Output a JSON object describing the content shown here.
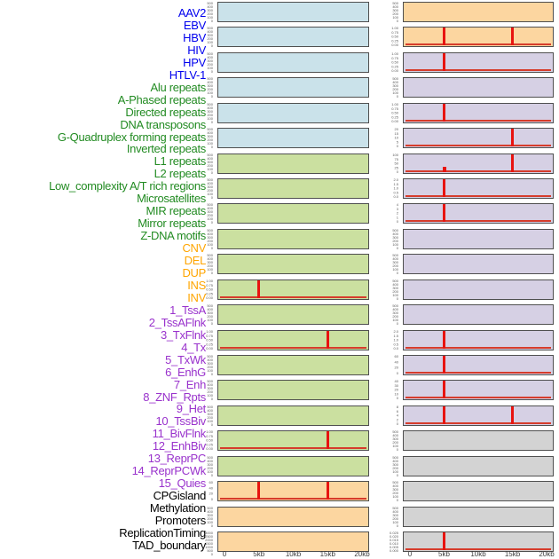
{
  "figure": {
    "layout": {
      "panel_columns": 2,
      "rows_per_column": 22,
      "total_tracks": 44
    },
    "x_axis": {
      "tick_labels": [
        "0",
        "5kb",
        "10kb",
        "15kb",
        "20kb"
      ],
      "tick_values_kb": [
        0,
        5,
        10,
        15,
        20
      ],
      "range_kb": [
        0,
        20
      ]
    }
  },
  "colors": {
    "background": "#ffffff",
    "panel_border": "#4f4f4f",
    "spike": "#e81410",
    "baseline": "#d63c2c",
    "y_tick_text": "#5a5a5a",
    "x_tick_text": "#3c3c3c",
    "panel_fill": {
      "virus": "#cae2ea",
      "repeat": "#cbe0a0",
      "sv": "#fcd6a0",
      "chromatin": "#d6d0e4",
      "other": "#d3d3d3"
    },
    "label_text": {
      "virus": "#0000ee",
      "repeat": "#228b22",
      "sv": "#ffa500",
      "chromatin": "#9932cc",
      "other": "#000000"
    }
  },
  "chart_data": {
    "type": "small-multiple strip panels (feature density tracks over a 0-20kb window)",
    "x_ticks": [
      "0",
      "5kb",
      "10kb",
      "15kb",
      "20kb"
    ],
    "x_range_kb": [
      0,
      20
    ],
    "spike_positions_kb": [
      5,
      15
    ],
    "tracks": [
      {
        "label": "AAV2",
        "category": "virus",
        "column": "left",
        "row": 1,
        "y_ticks": [
          "500",
          "400",
          "300",
          "200",
          "100",
          "0"
        ],
        "baseline": false,
        "spikes": []
      },
      {
        "label": "EBV",
        "category": "virus",
        "column": "left",
        "row": 2,
        "y_ticks": [
          "500",
          "400",
          "300",
          "200",
          "100",
          "0"
        ],
        "baseline": false,
        "spikes": []
      },
      {
        "label": "HBV",
        "category": "virus",
        "column": "left",
        "row": 3,
        "y_ticks": [
          "500",
          "400",
          "300",
          "200",
          "100",
          "0"
        ],
        "baseline": false,
        "spikes": []
      },
      {
        "label": "HIV",
        "category": "virus",
        "column": "left",
        "row": 4,
        "y_ticks": [
          "500",
          "400",
          "300",
          "200",
          "100",
          "0"
        ],
        "baseline": false,
        "spikes": []
      },
      {
        "label": "HPV",
        "category": "virus",
        "column": "left",
        "row": 5,
        "y_ticks": [
          "500",
          "400",
          "300",
          "200",
          "100",
          "0"
        ],
        "baseline": false,
        "spikes": []
      },
      {
        "label": "HTLV-1",
        "category": "virus",
        "column": "left",
        "row": 6,
        "y_ticks": [
          "500",
          "400",
          "300",
          "200",
          "100",
          "0"
        ],
        "baseline": false,
        "spikes": []
      },
      {
        "label": "Alu repeats",
        "category": "repeat",
        "column": "left",
        "row": 7,
        "y_ticks": [
          "500",
          "400",
          "300",
          "200",
          "100",
          "0"
        ],
        "baseline": false,
        "spikes": []
      },
      {
        "label": "A-Phased repeats",
        "category": "repeat",
        "column": "left",
        "row": 8,
        "y_ticks": [
          "500",
          "400",
          "300",
          "200",
          "100",
          "0"
        ],
        "baseline": false,
        "spikes": []
      },
      {
        "label": "Directed repeats",
        "category": "repeat",
        "column": "left",
        "row": 9,
        "y_ticks": [
          "500",
          "400",
          "300",
          "200",
          "100",
          "0"
        ],
        "baseline": false,
        "spikes": []
      },
      {
        "label": "DNA transposons",
        "category": "repeat",
        "column": "left",
        "row": 10,
        "y_ticks": [
          "500",
          "400",
          "300",
          "200",
          "100",
          "0"
        ],
        "baseline": false,
        "spikes": []
      },
      {
        "label": "G-Quadruplex forming repeats",
        "category": "repeat",
        "column": "left",
        "row": 11,
        "y_ticks": [
          "500",
          "400",
          "300",
          "200",
          "100",
          "0"
        ],
        "baseline": false,
        "spikes": []
      },
      {
        "label": "Inverted repeats",
        "category": "repeat",
        "column": "left",
        "row": 12,
        "y_ticks": [
          "1.00",
          "0.75",
          "0.50",
          "0.25",
          "0.00"
        ],
        "baseline": true,
        "spikes": [
          {
            "at_kb": 5,
            "h": 1.0,
            "w": 3
          }
        ]
      },
      {
        "label": "L1 repeats",
        "category": "repeat",
        "column": "left",
        "row": 13,
        "y_ticks": [
          "500",
          "400",
          "300",
          "200",
          "100",
          "0"
        ],
        "baseline": false,
        "spikes": []
      },
      {
        "label": "L2 repeats",
        "category": "repeat",
        "column": "left",
        "row": 14,
        "y_ticks": [
          "1.00",
          "0.75",
          "0.50",
          "0.25",
          "0.00"
        ],
        "baseline": true,
        "spikes": [
          {
            "at_kb": 15,
            "h": 1.0,
            "w": 3
          }
        ]
      },
      {
        "label": "Low_complexity A/T rich regions",
        "category": "repeat",
        "column": "left",
        "row": 15,
        "y_ticks": [
          "500",
          "400",
          "300",
          "200",
          "100",
          "0"
        ],
        "baseline": false,
        "spikes": []
      },
      {
        "label": "Microsatellites",
        "category": "repeat",
        "column": "left",
        "row": 16,
        "y_ticks": [
          "500",
          "400",
          "300",
          "200",
          "100",
          "0"
        ],
        "baseline": false,
        "spikes": []
      },
      {
        "label": "MIR repeats",
        "category": "repeat",
        "column": "left",
        "row": 17,
        "y_ticks": [
          "500",
          "400",
          "300",
          "200",
          "100",
          "0"
        ],
        "baseline": false,
        "spikes": []
      },
      {
        "label": "Mirror repeats",
        "category": "repeat",
        "column": "left",
        "row": 18,
        "y_ticks": [
          "1.00",
          "0.75",
          "0.50",
          "0.25",
          "0.00"
        ],
        "baseline": true,
        "spikes": [
          {
            "at_kb": 15,
            "h": 1.0,
            "w": 3
          }
        ]
      },
      {
        "label": "Z-DNA motifs",
        "category": "repeat",
        "column": "left",
        "row": 19,
        "y_ticks": [
          "500",
          "400",
          "300",
          "200",
          "100",
          "0"
        ],
        "baseline": false,
        "spikes": []
      },
      {
        "label": "CNV",
        "category": "sv",
        "column": "left",
        "row": 20,
        "y_ticks": [
          "60",
          "40",
          "20",
          "0"
        ],
        "baseline": true,
        "spikes": [
          {
            "at_kb": 5,
            "h": 1.0,
            "w": 3
          },
          {
            "at_kb": 15,
            "h": 1.0,
            "w": 3
          }
        ]
      },
      {
        "label": "DEL",
        "category": "sv",
        "column": "left",
        "row": 21,
        "y_ticks": [
          "500",
          "400",
          "300",
          "200",
          "100",
          "0"
        ],
        "baseline": false,
        "spikes": []
      },
      {
        "label": "DUP",
        "category": "sv",
        "column": "left",
        "row": 22,
        "y_ticks": [
          "3000",
          "2500",
          "2000",
          "1500",
          "1000",
          "500",
          "0"
        ],
        "baseline": false,
        "spikes": []
      },
      {
        "label": "INS",
        "category": "sv",
        "column": "right",
        "row": 1,
        "y_ticks": [
          "500",
          "400",
          "300",
          "200",
          "100",
          "0"
        ],
        "baseline": false,
        "spikes": []
      },
      {
        "label": "INV",
        "category": "sv",
        "column": "right",
        "row": 2,
        "y_ticks": [
          "1.00",
          "0.75",
          "0.50",
          "0.25",
          "0.00"
        ],
        "baseline": true,
        "spikes": [
          {
            "at_kb": 5,
            "h": 1.0,
            "w": 3
          },
          {
            "at_kb": 15,
            "h": 1.0,
            "w": 3
          }
        ]
      },
      {
        "label": "1_TssA",
        "category": "chromatin",
        "column": "right",
        "row": 3,
        "y_ticks": [
          "1.00",
          "0.75",
          "0.50",
          "0.25",
          "0.00"
        ],
        "baseline": true,
        "spikes": [
          {
            "at_kb": 5,
            "h": 1.0,
            "w": 3
          }
        ]
      },
      {
        "label": "2_TssAFlnk",
        "category": "chromatin",
        "column": "right",
        "row": 4,
        "y_ticks": [
          "500",
          "400",
          "300",
          "200",
          "100",
          "0"
        ],
        "baseline": false,
        "spikes": []
      },
      {
        "label": "3_TxFlnk",
        "category": "chromatin",
        "column": "right",
        "row": 5,
        "y_ticks": [
          "1.00",
          "0.75",
          "0.50",
          "0.25",
          "0.00"
        ],
        "baseline": true,
        "spikes": [
          {
            "at_kb": 5,
            "h": 1.0,
            "w": 3
          }
        ]
      },
      {
        "label": "4_Tx",
        "category": "chromatin",
        "column": "right",
        "row": 6,
        "y_ticks": [
          "20",
          "15",
          "10",
          "5",
          "0"
        ],
        "baseline": true,
        "spikes": [
          {
            "at_kb": 15,
            "h": 1.0,
            "w": 3
          }
        ]
      },
      {
        "label": "5_TxWk",
        "category": "chromatin",
        "column": "right",
        "row": 7,
        "y_ticks": [
          "100",
          "75",
          "50",
          "25",
          "0"
        ],
        "baseline": true,
        "spikes": [
          {
            "at_kb": 5,
            "h": 0.27,
            "w": 4
          },
          {
            "at_kb": 15,
            "h": 1.0,
            "w": 3
          }
        ]
      },
      {
        "label": "6_EnhG",
        "category": "chromatin",
        "column": "right",
        "row": 8,
        "y_ticks": [
          "2.0",
          "1.5",
          "1.0",
          "0.5",
          "0.0"
        ],
        "baseline": true,
        "spikes": [
          {
            "at_kb": 5,
            "h": 1.0,
            "w": 3
          }
        ]
      },
      {
        "label": "7_Enh",
        "category": "chromatin",
        "column": "right",
        "row": 9,
        "y_ticks": [
          "4",
          "3",
          "2",
          "1",
          "0"
        ],
        "baseline": true,
        "spikes": [
          {
            "at_kb": 5,
            "h": 1.0,
            "w": 3
          }
        ]
      },
      {
        "label": "8_ZNF_Rpts",
        "category": "chromatin",
        "column": "right",
        "row": 10,
        "y_ticks": [
          "500",
          "400",
          "300",
          "200",
          "100",
          "0"
        ],
        "baseline": false,
        "spikes": []
      },
      {
        "label": "9_Het",
        "category": "chromatin",
        "column": "right",
        "row": 11,
        "y_ticks": [
          "500",
          "400",
          "300",
          "200",
          "100",
          "0"
        ],
        "baseline": false,
        "spikes": []
      },
      {
        "label": "10_TssBiv",
        "category": "chromatin",
        "column": "right",
        "row": 12,
        "y_ticks": [
          "500",
          "400",
          "300",
          "200",
          "100",
          "0"
        ],
        "baseline": false,
        "spikes": []
      },
      {
        "label": "11_BivFlnk",
        "category": "chromatin",
        "column": "right",
        "row": 13,
        "y_ticks": [
          "500",
          "400",
          "300",
          "200",
          "100",
          "0"
        ],
        "baseline": false,
        "spikes": []
      },
      {
        "label": "12_EnhBiv",
        "category": "chromatin",
        "column": "right",
        "row": 14,
        "y_ticks": [
          "2.0",
          "1.5",
          "1.0",
          "0.5",
          "0.0"
        ],
        "baseline": true,
        "spikes": [
          {
            "at_kb": 5,
            "h": 1.0,
            "w": 3
          }
        ]
      },
      {
        "label": "13_ReprPC",
        "category": "chromatin",
        "column": "right",
        "row": 15,
        "y_ticks": [
          "60",
          "40",
          "20",
          "0"
        ],
        "baseline": true,
        "spikes": [
          {
            "at_kb": 5,
            "h": 1.0,
            "w": 3
          }
        ]
      },
      {
        "label": "14_ReprPCWk",
        "category": "chromatin",
        "column": "right",
        "row": 16,
        "y_ticks": [
          "40",
          "30",
          "20",
          "10",
          "0"
        ],
        "baseline": true,
        "spikes": [
          {
            "at_kb": 5,
            "h": 1.0,
            "w": 3
          }
        ]
      },
      {
        "label": "15_Quies",
        "category": "chromatin",
        "column": "right",
        "row": 17,
        "y_ticks": [
          "8",
          "6",
          "4",
          "2",
          "0"
        ],
        "baseline": true,
        "spikes": [
          {
            "at_kb": 5,
            "h": 1.0,
            "w": 3
          },
          {
            "at_kb": 15,
            "h": 1.0,
            "w": 3
          }
        ]
      },
      {
        "label": "CPGisland",
        "category": "other",
        "column": "right",
        "row": 18,
        "y_ticks": [
          "500",
          "400",
          "300",
          "200",
          "100",
          "0"
        ],
        "baseline": false,
        "spikes": []
      },
      {
        "label": "Methylation",
        "category": "other",
        "column": "right",
        "row": 19,
        "y_ticks": [
          "500",
          "400",
          "300",
          "200",
          "100",
          "0"
        ],
        "baseline": false,
        "spikes": []
      },
      {
        "label": "Promoters",
        "category": "other",
        "column": "right",
        "row": 20,
        "y_ticks": [
          "500",
          "400",
          "300",
          "200",
          "100",
          "0"
        ],
        "baseline": false,
        "spikes": []
      },
      {
        "label": "ReplicationTiming",
        "category": "other",
        "column": "right",
        "row": 21,
        "y_ticks": [
          "500",
          "400",
          "300",
          "200",
          "100",
          "0"
        ],
        "baseline": false,
        "spikes": []
      },
      {
        "label": "TAD_boundary",
        "category": "other",
        "column": "right",
        "row": 22,
        "y_ticks": [
          "0.025",
          "0.020",
          "0.015",
          "0.010",
          "0.005",
          "0.000"
        ],
        "baseline": true,
        "spikes": [
          {
            "at_kb": 5,
            "h": 1.0,
            "w": 3
          }
        ]
      }
    ]
  }
}
